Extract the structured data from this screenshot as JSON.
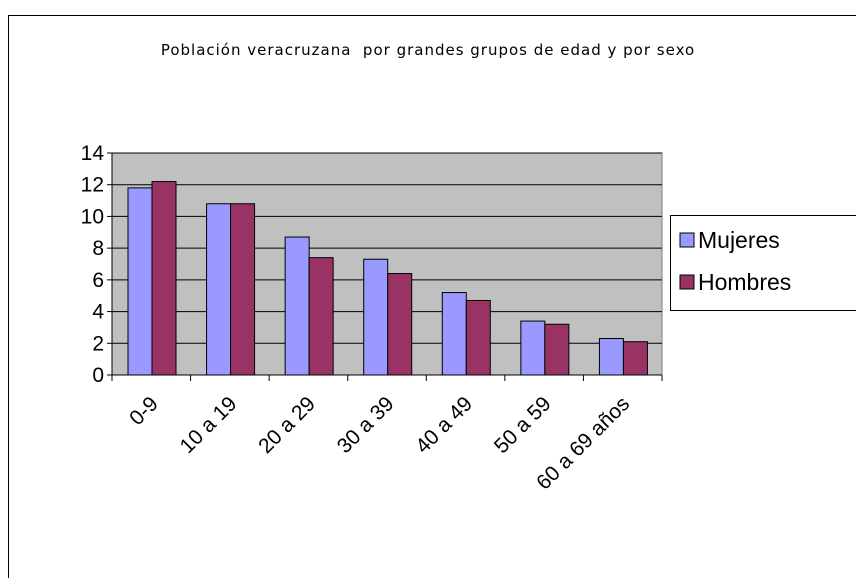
{
  "chart_data": {
    "type": "bar",
    "title": "Población veracruzana  por grandes grupos de edad y por sexo",
    "categories": [
      "0-9",
      "10 a 19",
      "20 a 29",
      "30 a 39",
      "40 a 49",
      "50 a 59",
      "60 a 69 años"
    ],
    "series": [
      {
        "name": "Mujeres",
        "color": "#9999ff",
        "values": [
          11.8,
          10.8,
          8.7,
          7.3,
          5.2,
          3.4,
          2.3
        ]
      },
      {
        "name": "Hombres",
        "color": "#993366",
        "values": [
          12.2,
          10.8,
          7.4,
          6.4,
          4.7,
          3.2,
          2.1
        ]
      }
    ],
    "ylim": [
      0,
      14
    ],
    "yticks": [
      0,
      2,
      4,
      6,
      8,
      10,
      12,
      14
    ],
    "grid": true,
    "legend": "right"
  }
}
